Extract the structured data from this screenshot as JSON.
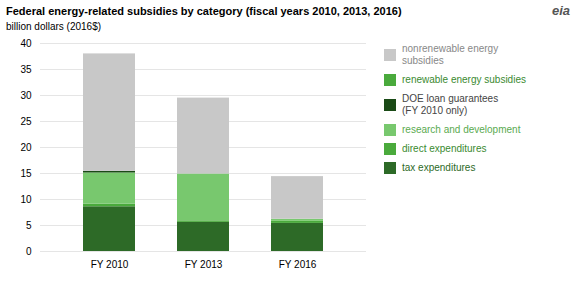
{
  "chart_data": {
    "type": "bar",
    "stacked": true,
    "title": "Federal energy-related subsidies by category (fiscal years 2010, 2013, 2016)",
    "ylabel": "billion dollars (2016$)",
    "annotations": [
      "eia"
    ],
    "categories": [
      "FY 2010",
      "FY 2013",
      "FY 2016"
    ],
    "series": [
      {
        "name": "tax expenditures",
        "color": "#2d6a27",
        "values": [
          8.6,
          5.6,
          5.4
        ]
      },
      {
        "name": "direct expenditures",
        "color": "#4aaa3c",
        "values": [
          0.5,
          0.3,
          0.4
        ]
      },
      {
        "name": "research and development",
        "color": "#78c86e",
        "values": [
          6.0,
          9.0,
          0.4
        ]
      },
      {
        "name": "DOE loan guarantees\n(FY 2010 only)",
        "color": "#1a4a16",
        "values": [
          0.3,
          0.0,
          0.0
        ]
      },
      {
        "name": "nonrenewable energy\nsubsidies",
        "color": "#c8c8c8",
        "values": [
          22.6,
          14.6,
          8.2
        ]
      }
    ],
    "legend_items": [
      {
        "label": "nonrenewable energy\nsubsidies",
        "color": "#c8c8c8",
        "text_color": "#888888"
      },
      {
        "label": "renewable energy subsidies",
        "color": "#4aaa3c",
        "text_color": "#3a8a30"
      },
      {
        "label": "DOE loan guarantees\n(FY 2010 only)",
        "color": "#1a4a16",
        "text_color": "#444444"
      },
      {
        "label": "research and development",
        "color": "#78c86e",
        "text_color": "#5aaa50"
      },
      {
        "label": "direct expenditures",
        "color": "#4aaa3c",
        "text_color": "#3a8a30"
      },
      {
        "label": "tax expenditures",
        "color": "#2d6a27",
        "text_color": "#2d6a27"
      }
    ],
    "legend": "right",
    "ylim": [
      0,
      40
    ],
    "yticks": [
      0,
      5,
      10,
      15,
      20,
      25,
      30,
      35,
      40
    ],
    "grid": true
  }
}
